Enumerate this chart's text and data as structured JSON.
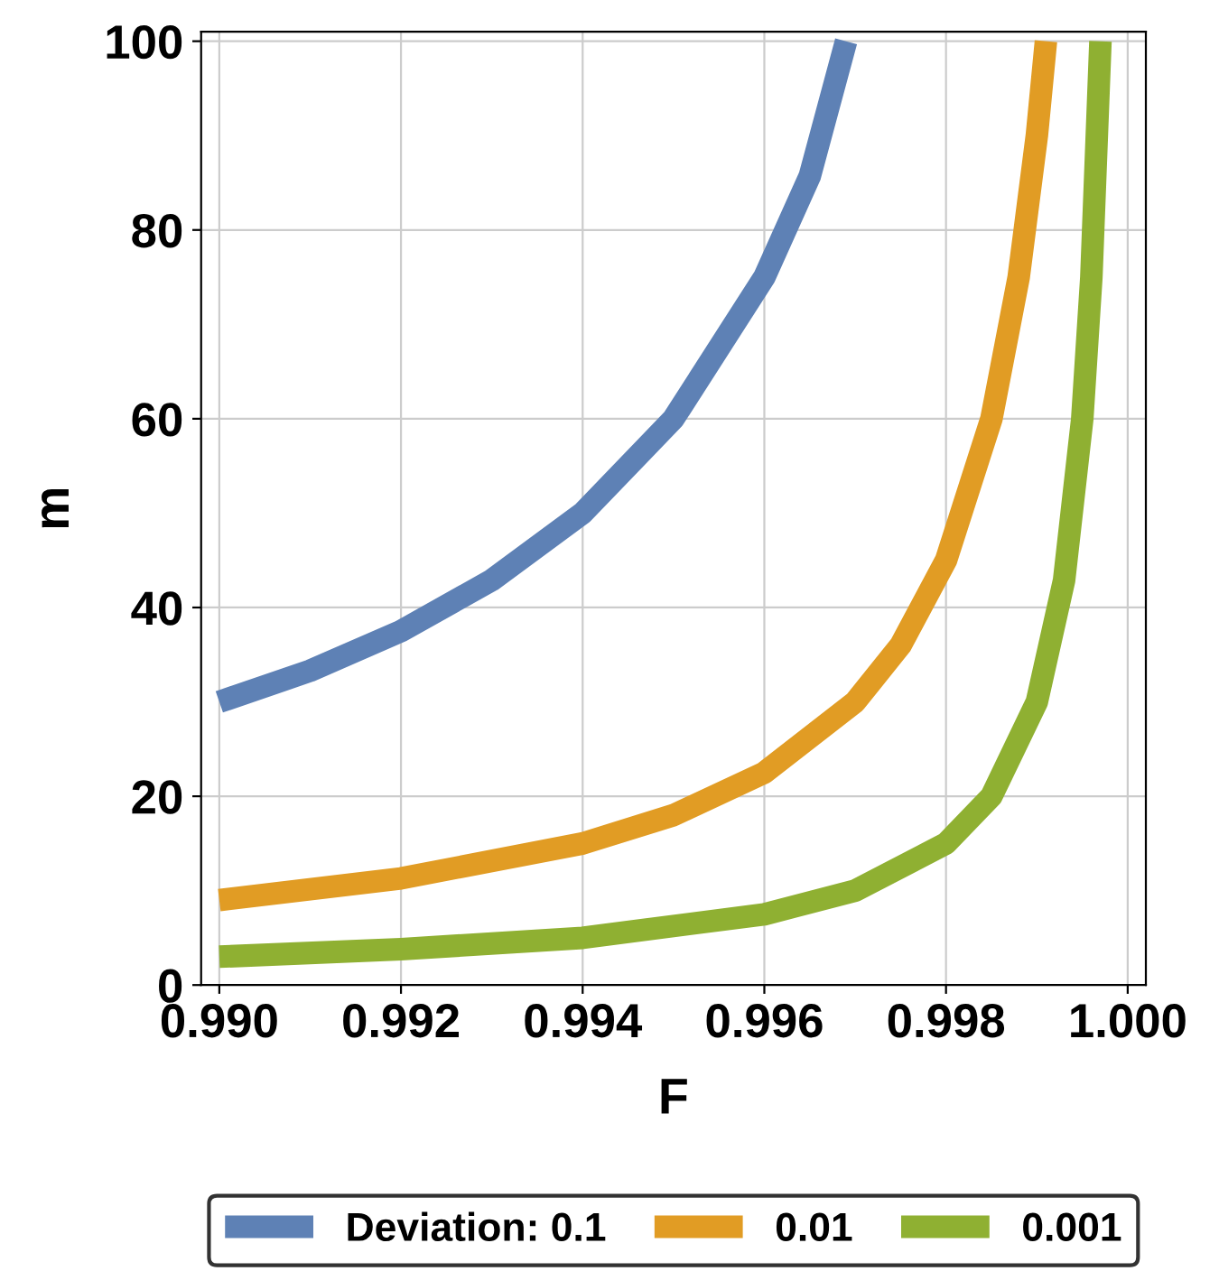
{
  "chart_data": {
    "type": "line",
    "xlabel": "F",
    "ylabel": "m",
    "xlim": [
      0.9898,
      1.0002
    ],
    "ylim": [
      0,
      101
    ],
    "xticks": [
      {
        "value": 0.99,
        "label": "0.990"
      },
      {
        "value": 0.992,
        "label": "0.992"
      },
      {
        "value": 0.994,
        "label": "0.994"
      },
      {
        "value": 0.996,
        "label": "0.996"
      },
      {
        "value": 0.998,
        "label": "0.998"
      },
      {
        "value": 1.0,
        "label": "1.000"
      }
    ],
    "yticks": [
      0,
      20,
      40,
      60,
      80,
      100
    ],
    "grid": true,
    "legend": "bottom",
    "marker": "none",
    "line_style": "solid",
    "series": [
      {
        "name": "Deviation: 0.1",
        "color": "#5e81b5",
        "x": [
          0.99,
          0.991,
          0.992,
          0.993,
          0.994,
          0.995,
          0.996,
          0.9965,
          0.9969
        ],
        "values": [
          30,
          33.3,
          37.5,
          42.9,
          50,
          60,
          75,
          85.7,
          100
        ]
      },
      {
        "name": "0.01",
        "color": "#e19c24",
        "x": [
          0.99,
          0.992,
          0.994,
          0.995,
          0.996,
          0.997,
          0.9975,
          0.998,
          0.9985,
          0.9988,
          0.999,
          0.9991
        ],
        "values": [
          9,
          11.3,
          15,
          18,
          22.5,
          30,
          36,
          45,
          60,
          75,
          90,
          100
        ]
      },
      {
        "name": "0.001",
        "color": "#8fb032",
        "x": [
          0.99,
          0.992,
          0.994,
          0.996,
          0.997,
          0.998,
          0.9985,
          0.999,
          0.9993,
          0.9995,
          0.9996,
          0.9997
        ],
        "values": [
          3,
          3.8,
          5,
          7.5,
          10,
          15,
          20,
          30,
          42.9,
          60,
          75,
          100
        ]
      }
    ]
  }
}
